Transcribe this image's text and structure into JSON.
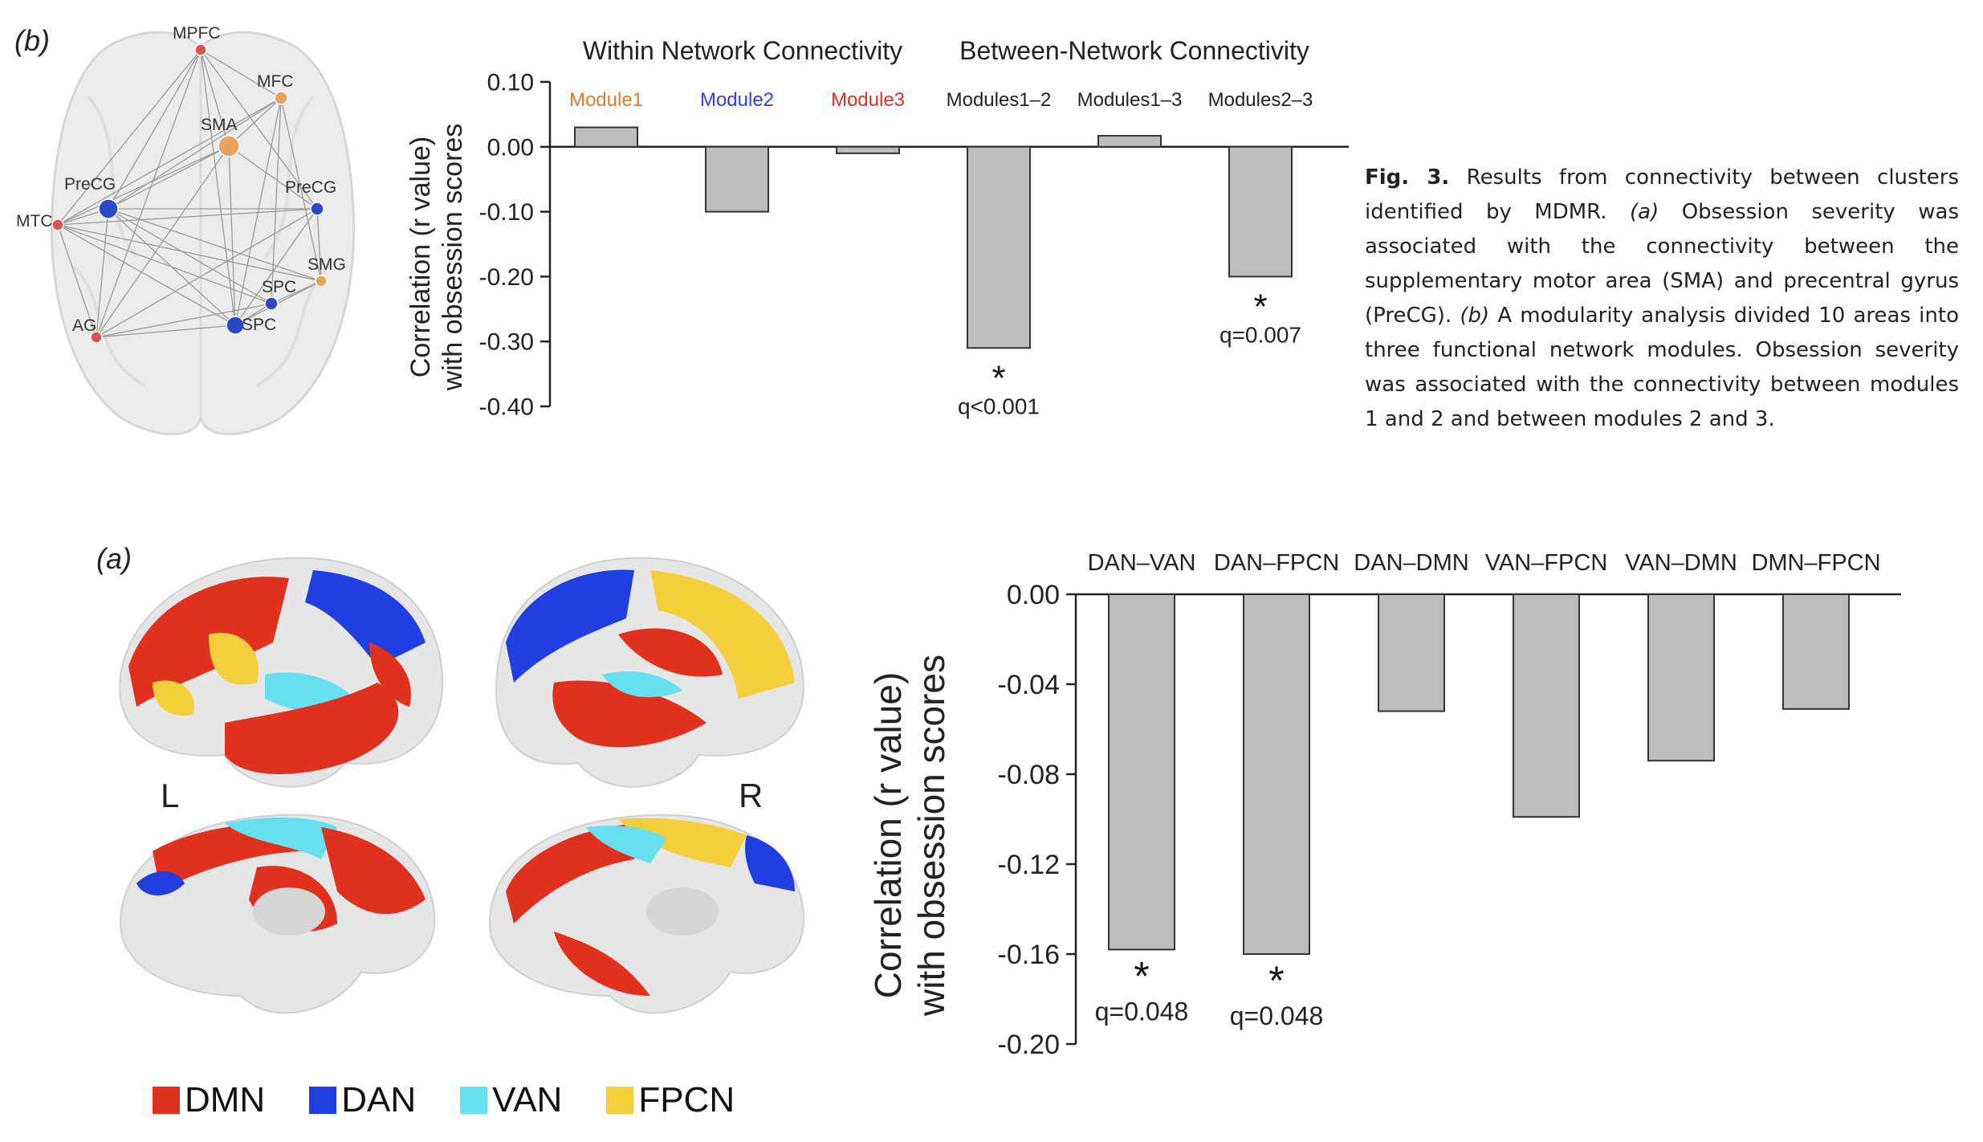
{
  "panel_b_label": "(b)",
  "panel_a_label": "(a)",
  "caption": {
    "fig_label": "Fig. 3.",
    "text_1": " Results from connectivity between clusters identified by MDMR. ",
    "a_mark": "(a)",
    "text_2": " Obsession severity was associated with the connectivity between the supplementary motor area (SMA) and precentral gyrus (PreCG). ",
    "b_mark": "(b)",
    "text_3": " A modularity analysis divided 10 areas into three functional network modules. Obsession severity was associated with the connectivity between modules 1 and 2 and between modules 2 and 3."
  },
  "brain_network": {
    "nodes": [
      {
        "label": "MPFC",
        "color": "#d9534f"
      },
      {
        "label": "MFC",
        "color": "#e8a35c"
      },
      {
        "label": "SMA",
        "color": "#e8a35c"
      },
      {
        "label": "PreCG",
        "color": "#2a49c8"
      },
      {
        "label": "MTC",
        "color": "#d9534f"
      },
      {
        "label": "PreCG",
        "color": "#2a49c8"
      },
      {
        "label": "SMG",
        "color": "#e8a35c"
      },
      {
        "label": "SPC",
        "color": "#2a49c8"
      },
      {
        "label": "AG",
        "color": "#d9534f"
      },
      {
        "label": "SPC",
        "color": "#2a49c8"
      }
    ]
  },
  "cortex_labels": {
    "left": "L",
    "right": "R"
  },
  "legend": [
    {
      "label": "DMN",
      "color": "#e0301e"
    },
    {
      "label": "DAN",
      "color": "#1f3fe0"
    },
    {
      "label": "VAN",
      "color": "#66dff0"
    },
    {
      "label": "FPCN",
      "color": "#f3cf3c"
    }
  ],
  "chart_data": [
    {
      "type": "bar",
      "group_labels": [
        "Within Network Connectivity",
        "Between-Network Connectivity"
      ],
      "categories": [
        "Module1",
        "Module2",
        "Module3",
        "Modules1–2",
        "Modules1–3",
        "Modules2–3"
      ],
      "category_colors": [
        "#e07a2c",
        "#2f3fe0",
        "#e0302a",
        "#222222",
        "#222222",
        "#222222"
      ],
      "values": [
        0.03,
        -0.1,
        -0.01,
        -0.31,
        0.017,
        -0.2
      ],
      "annotations": [
        "",
        "",
        "",
        "q<0.001",
        "",
        "q=0.007"
      ],
      "significant": [
        false,
        false,
        false,
        true,
        false,
        true
      ],
      "star": "*",
      "ylabel_line1": "Correlation (r value)",
      "ylabel_line2": "with obsession scores",
      "yticks": [
        0.1,
        0.0,
        -0.1,
        -0.2,
        -0.3,
        -0.4
      ],
      "ytick_labels": [
        "0.10",
        "0.00",
        "-0.10",
        "-0.20",
        "-0.30",
        "-0.40"
      ],
      "ylim": [
        -0.4,
        0.1
      ],
      "bar_color": "#bdbdbd"
    },
    {
      "type": "bar",
      "categories": [
        "DAN–VAN",
        "DAN–FPCN",
        "DAN–DMN",
        "VAN–FPCN",
        "VAN–DMN",
        "DMN–FPCN"
      ],
      "values": [
        -0.158,
        -0.16,
        -0.052,
        -0.099,
        -0.074,
        -0.051
      ],
      "annotations": [
        "q=0.048",
        "q=0.048",
        "",
        "",
        "",
        ""
      ],
      "significant": [
        true,
        true,
        false,
        false,
        false,
        false
      ],
      "star": "*",
      "ylabel_line1": "Correlation (r value)",
      "ylabel_line2": "with obsession scores",
      "yticks": [
        0.0,
        -0.04,
        -0.08,
        -0.12,
        -0.16,
        -0.2
      ],
      "ytick_labels": [
        "0.00",
        "-0.04",
        "-0.08",
        "-0.12",
        "-0.16",
        "-0.20"
      ],
      "ylim": [
        -0.2,
        0.0
      ],
      "bar_color": "#bdbdbd"
    }
  ]
}
